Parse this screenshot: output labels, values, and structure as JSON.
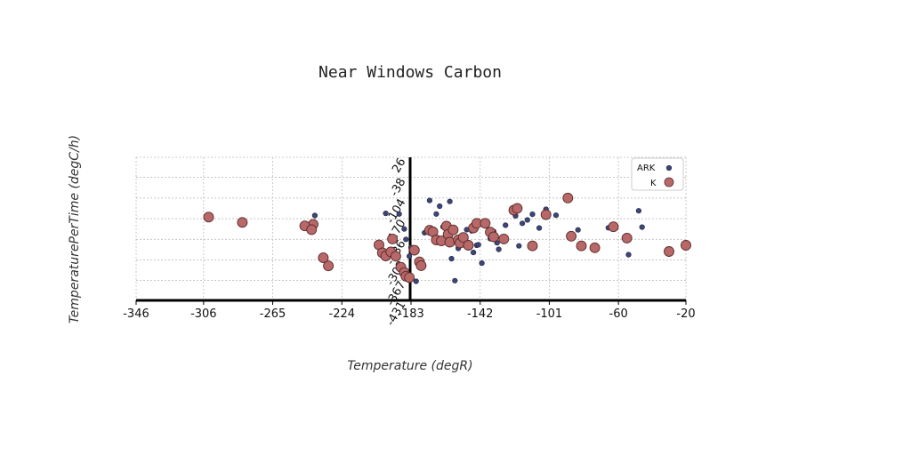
{
  "chart_data": {
    "type": "scatter",
    "title": "Near Windows Carbon",
    "xlabel": "Temperature (degR)",
    "ylabel": "TemperaturePerTime (degC/h)",
    "xlim": [
      -346,
      -20
    ],
    "ylim": [
      -431,
      26
    ],
    "x_ticks": [
      "-346",
      "-306",
      "-265",
      "-224",
      "-183",
      "-142",
      "-101",
      "-60",
      "-20"
    ],
    "y_ticks": [
      "26",
      "-38",
      "-104",
      "-170",
      "-236",
      "-302",
      "-367",
      "-431"
    ],
    "grid": true,
    "legend_position": "top-right",
    "colors": {
      "ARK": "#3d4677",
      "K": "#b86868"
    },
    "series": [
      {
        "name": "ARK",
        "points": [
          [
            -240,
            -160
          ],
          [
            -198,
            -153
          ],
          [
            -190,
            -155
          ],
          [
            -187,
            -203
          ],
          [
            -186,
            -236
          ],
          [
            -183,
            -262
          ],
          [
            -184,
            -290
          ],
          [
            -180,
            -370
          ],
          [
            -175,
            -215
          ],
          [
            -172,
            -112
          ],
          [
            -168,
            -155
          ],
          [
            -166,
            -130
          ],
          [
            -164,
            -196
          ],
          [
            -162,
            -188
          ],
          [
            -160,
            -115
          ],
          [
            -159,
            -298
          ],
          [
            -157,
            -368
          ],
          [
            -155,
            -265
          ],
          [
            -151,
            -255
          ],
          [
            -150,
            -205
          ],
          [
            -147,
            -209
          ],
          [
            -146,
            -278
          ],
          [
            -144,
            -255
          ],
          [
            -143,
            -253
          ],
          [
            -141,
            -312
          ],
          [
            -139,
            -182
          ],
          [
            -136,
            -234
          ],
          [
            -134,
            -211
          ],
          [
            -132,
            -247
          ],
          [
            -131,
            -268
          ],
          [
            -127,
            -191
          ],
          [
            -121,
            -161
          ],
          [
            -119,
            -257
          ],
          [
            -117,
            -185
          ],
          [
            -114,
            -174
          ],
          [
            -111,
            -156
          ],
          [
            -107,
            -200
          ],
          [
            -103,
            -140
          ],
          [
            -97,
            -159
          ],
          [
            -84,
            -206
          ],
          [
            -66,
            -199
          ],
          [
            -54,
            -285
          ],
          [
            -48,
            -145
          ],
          [
            -46,
            -197
          ],
          [
            -28,
            -57
          ]
        ]
      },
      {
        "name": "K",
        "points": [
          [
            -303,
            -165
          ],
          [
            -283,
            -182
          ],
          [
            -241,
            -188
          ],
          [
            -246,
            -193
          ],
          [
            -242,
            -205
          ],
          [
            -235,
            -295
          ],
          [
            -232,
            -321
          ],
          [
            -202,
            -254
          ],
          [
            -200,
            -279
          ],
          [
            -198,
            -289
          ],
          [
            -195,
            -276
          ],
          [
            -194,
            -235
          ],
          [
            -192,
            -290
          ],
          [
            -189,
            -325
          ],
          [
            -187,
            -342
          ],
          [
            -186,
            -354
          ],
          [
            -184,
            -358
          ],
          [
            -181,
            -271
          ],
          [
            -178,
            -308
          ],
          [
            -177,
            -320
          ],
          [
            -172,
            -207
          ],
          [
            -170,
            -212
          ],
          [
            -168,
            -238
          ],
          [
            -165,
            -241
          ],
          [
            -162,
            -194
          ],
          [
            -161,
            -220
          ],
          [
            -160,
            -245
          ],
          [
            -158,
            -206
          ],
          [
            -155,
            -238
          ],
          [
            -154,
            -248
          ],
          [
            -152,
            -230
          ],
          [
            -149,
            -255
          ],
          [
            -146,
            -200
          ],
          [
            -144,
            -185
          ],
          [
            -139,
            -185
          ],
          [
            -136,
            -213
          ],
          [
            -134,
            -228
          ],
          [
            -128,
            -235
          ],
          [
            -122,
            -143
          ],
          [
            -120,
            -137
          ],
          [
            -111,
            -257
          ],
          [
            -103,
            -157
          ],
          [
            -90,
            -104
          ],
          [
            -88,
            -226
          ],
          [
            -82,
            -257
          ],
          [
            -74,
            -263
          ],
          [
            -63,
            -196
          ],
          [
            -55,
            -232
          ],
          [
            -42,
            -38
          ],
          [
            -30,
            -275
          ],
          [
            -20,
            -255
          ]
        ]
      }
    ]
  }
}
